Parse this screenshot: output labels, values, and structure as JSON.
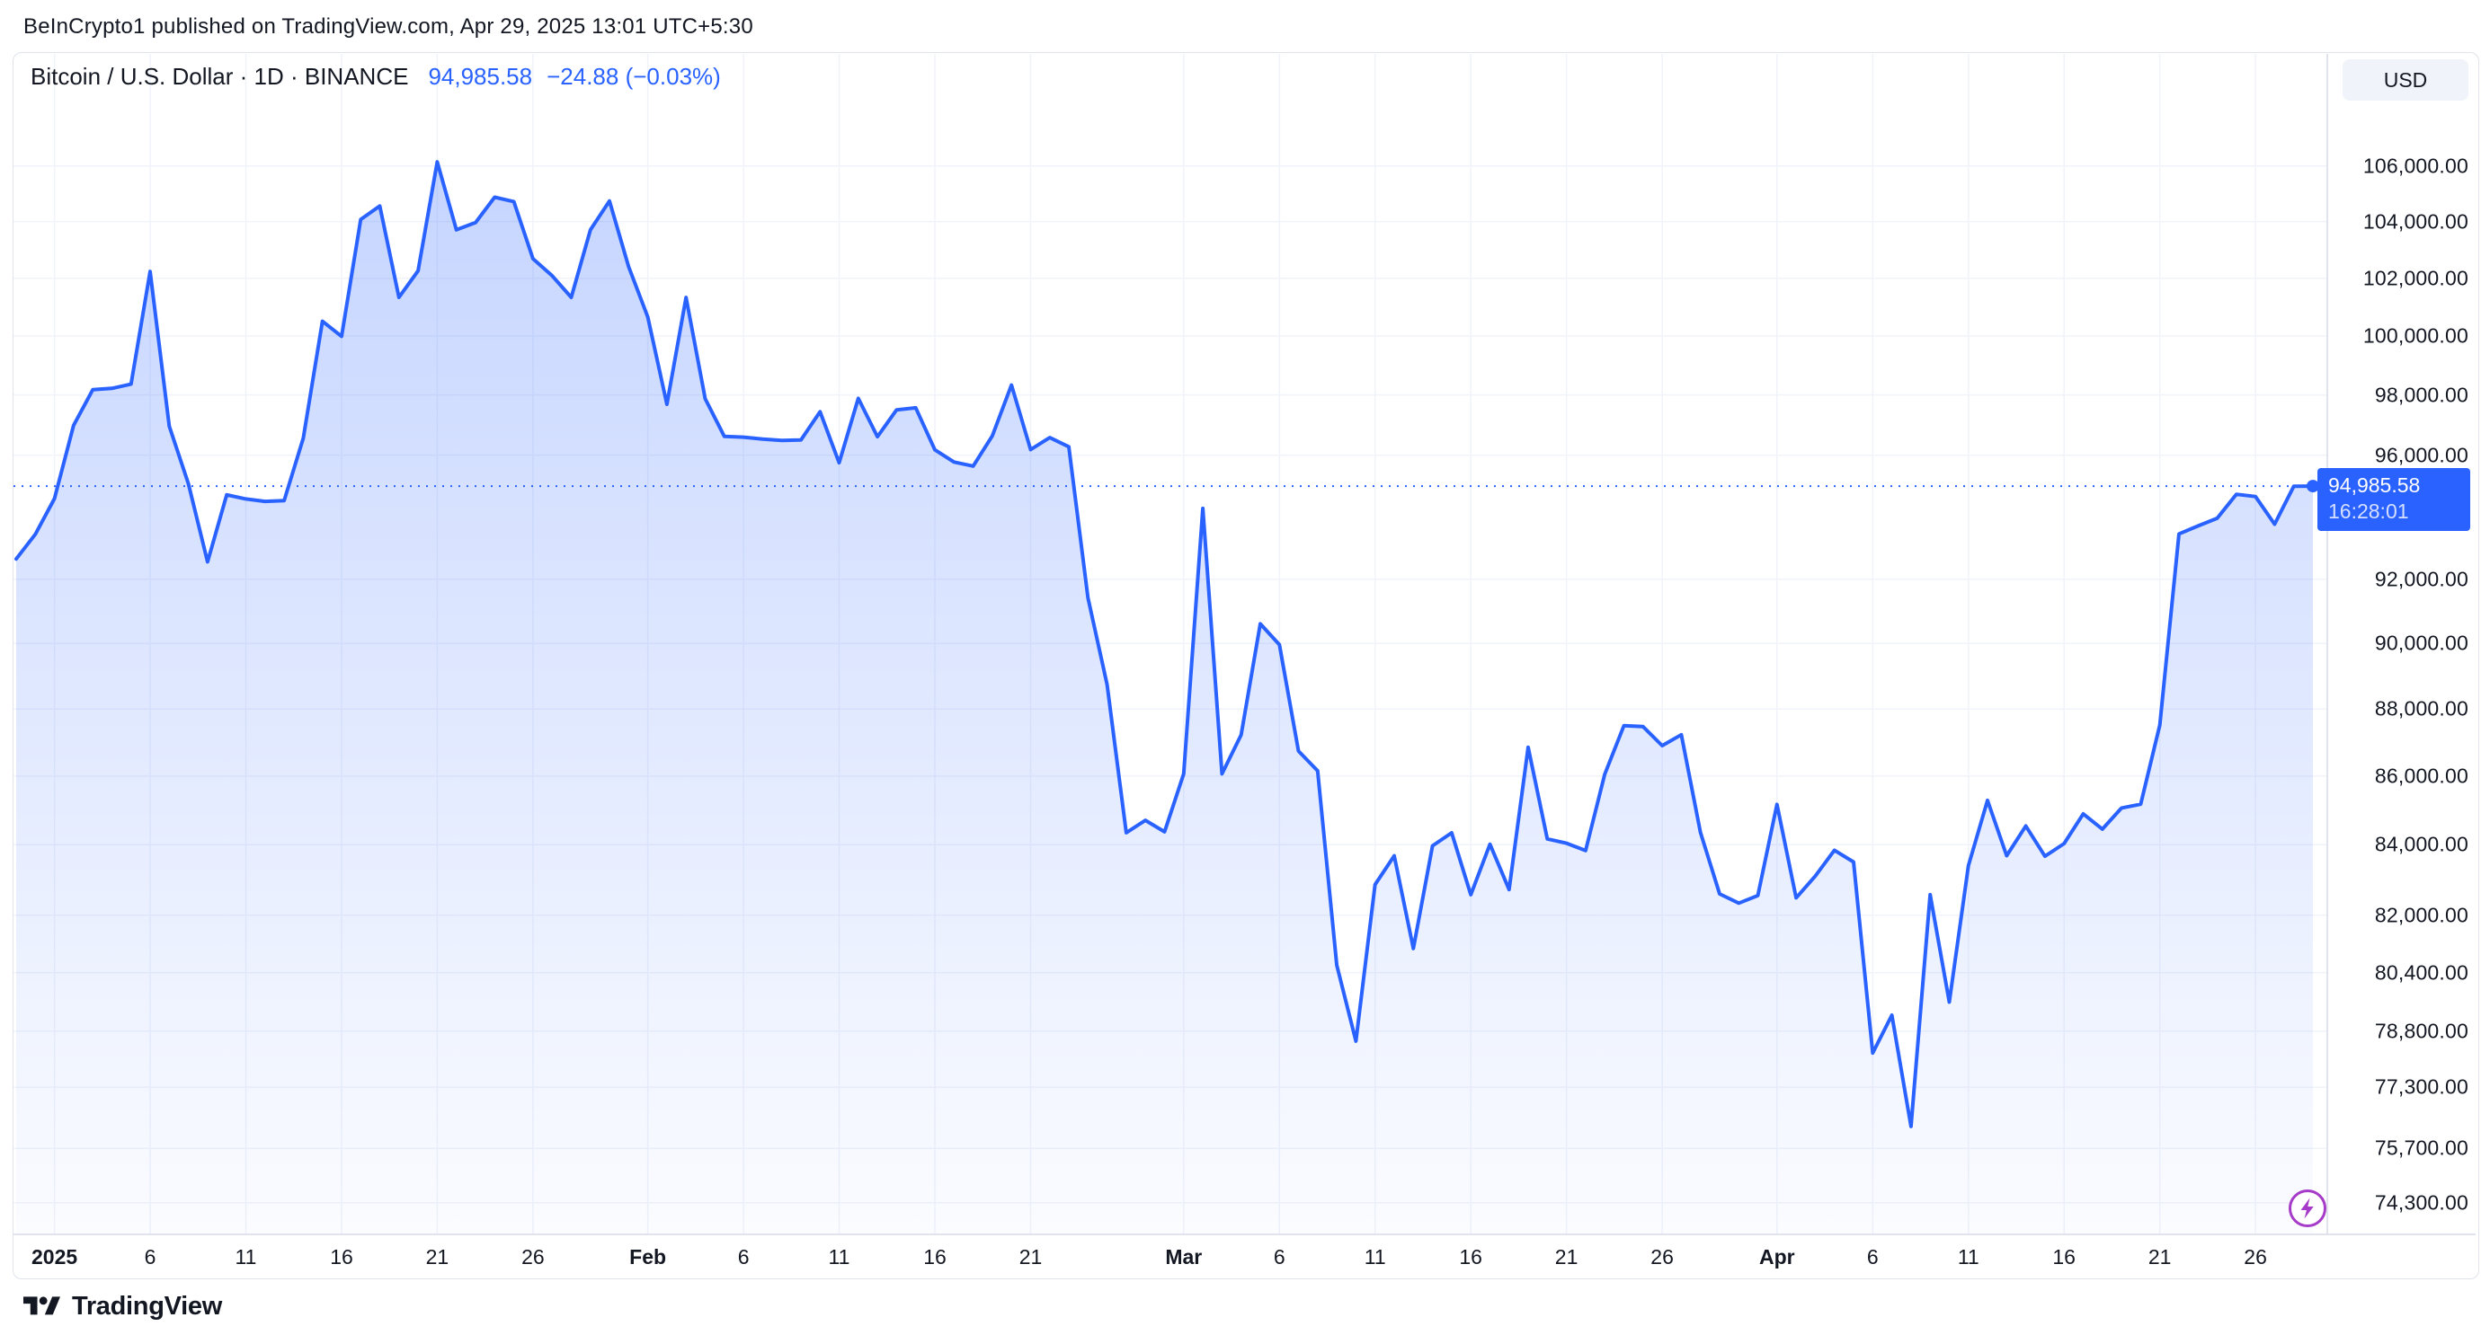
{
  "attribution": "BeInCrypto1 published on TradingView.com, Apr 29, 2025 13:01 UTC+5:30",
  "symbol": {
    "title": "Bitcoin / U.S. Dollar · 1D · BINANCE",
    "price": "94,985.58",
    "change": "−24.88 (−0.03%)"
  },
  "currency_button": "USD",
  "price_label": {
    "price": "94,985.58",
    "countdown": "16:28:01"
  },
  "footer": {
    "brand": "TradingView"
  },
  "colors": {
    "accent": "#2962FF",
    "badge_bg": "#2962FF",
    "text": "#131722",
    "grid": "#F0F3FA",
    "border": "#E0E3EB",
    "flash": "#A63AC9"
  },
  "price_axis": {
    "ticks": [
      {
        "label": "106,000.00",
        "value": 106000
      },
      {
        "label": "104,000.00",
        "value": 104000
      },
      {
        "label": "102,000.00",
        "value": 102000
      },
      {
        "label": "100,000.00",
        "value": 100000
      },
      {
        "label": "98,000.00",
        "value": 98000
      },
      {
        "label": "96,000.00",
        "value": 96000
      },
      {
        "label": "92,000.00",
        "value": 92000
      },
      {
        "label": "90,000.00",
        "value": 90000
      },
      {
        "label": "88,000.00",
        "value": 88000
      },
      {
        "label": "86,000.00",
        "value": 86000
      },
      {
        "label": "84,000.00",
        "value": 84000
      },
      {
        "label": "82,000.00",
        "value": 82000
      },
      {
        "label": "80,400.00",
        "value": 80400
      },
      {
        "label": "78,800.00",
        "value": 78800
      },
      {
        "label": "77,300.00",
        "value": 77300
      },
      {
        "label": "75,700.00",
        "value": 75700
      },
      {
        "label": "74,300.00",
        "value": 74300
      }
    ]
  },
  "time_axis": {
    "ticks": [
      {
        "label": "2025",
        "i": 2,
        "major": true
      },
      {
        "label": "6",
        "i": 7,
        "major": false
      },
      {
        "label": "11",
        "i": 12,
        "major": false
      },
      {
        "label": "16",
        "i": 17,
        "major": false
      },
      {
        "label": "21",
        "i": 22,
        "major": false
      },
      {
        "label": "26",
        "i": 27,
        "major": false
      },
      {
        "label": "Feb",
        "i": 33,
        "major": true
      },
      {
        "label": "6",
        "i": 38,
        "major": false
      },
      {
        "label": "11",
        "i": 43,
        "major": false
      },
      {
        "label": "16",
        "i": 48,
        "major": false
      },
      {
        "label": "21",
        "i": 53,
        "major": false
      },
      {
        "label": "Mar",
        "i": 61,
        "major": true
      },
      {
        "label": "6",
        "i": 66,
        "major": false
      },
      {
        "label": "11",
        "i": 71,
        "major": false
      },
      {
        "label": "16",
        "i": 76,
        "major": false
      },
      {
        "label": "21",
        "i": 81,
        "major": false
      },
      {
        "label": "26",
        "i": 86,
        "major": false
      },
      {
        "label": "Apr",
        "i": 92,
        "major": true
      },
      {
        "label": "6",
        "i": 97,
        "major": false
      },
      {
        "label": "11",
        "i": 102,
        "major": false
      },
      {
        "label": "16",
        "i": 107,
        "major": false
      },
      {
        "label": "21",
        "i": 112,
        "major": false
      },
      {
        "label": "26",
        "i": 117,
        "major": false
      }
    ]
  },
  "chart_data": {
    "type": "area",
    "title": "Bitcoin / U.S. Dollar, 1D, BINANCE",
    "ylabel": "USD",
    "interval": "1D",
    "scale": "log",
    "x_start": "2024-12-30",
    "x_end": "2025-04-29",
    "ylim": [
      73500,
      108000
    ],
    "current_price": 94985.58,
    "grid": true,
    "values": [
      92643,
      93429,
      94580,
      96985,
      98174,
      98220,
      98363,
      102235,
      96954,
      95060,
      92552,
      94701,
      94566,
      94488,
      94516,
      96560,
      100504,
      99987,
      104077,
      104556,
      101331,
      102260,
      106146,
      103706,
      103960,
      104870,
      104714,
      102682,
      102087,
      101332,
      103703,
      104735,
      102405,
      100655,
      97688,
      101328,
      97871,
      96615,
      96593,
      96529,
      96482,
      96500,
      97437,
      95747,
      97885,
      96608,
      97500,
      97570,
      96175,
      95773,
      95639,
      96635,
      98333,
      96181,
      96577,
      96273,
      91418,
      88736,
      84347,
      84705,
      84373,
      86064,
      94261,
      86065,
      87222,
      90606,
      89962,
      86742,
      86154,
      80601,
      78532,
      82862,
      83681,
      81066,
      83969,
      84343,
      82575,
      84016,
      82718,
      86854,
      84167,
      84043,
      83832,
      86054,
      87498,
      87471,
      86900,
      87227,
      84353,
      82597,
      82334,
      82548,
      85169,
      82485,
      83102,
      83843,
      83504,
      78214,
      79235,
      76271,
      82573,
      79591,
      83404,
      85287,
      83684,
      84542,
      83668,
      84033,
      84895,
      84450,
      85063,
      85174,
      87518,
      93441,
      93699,
      93943,
      94720,
      94646,
      93754,
      94978,
      94985.58
    ]
  }
}
